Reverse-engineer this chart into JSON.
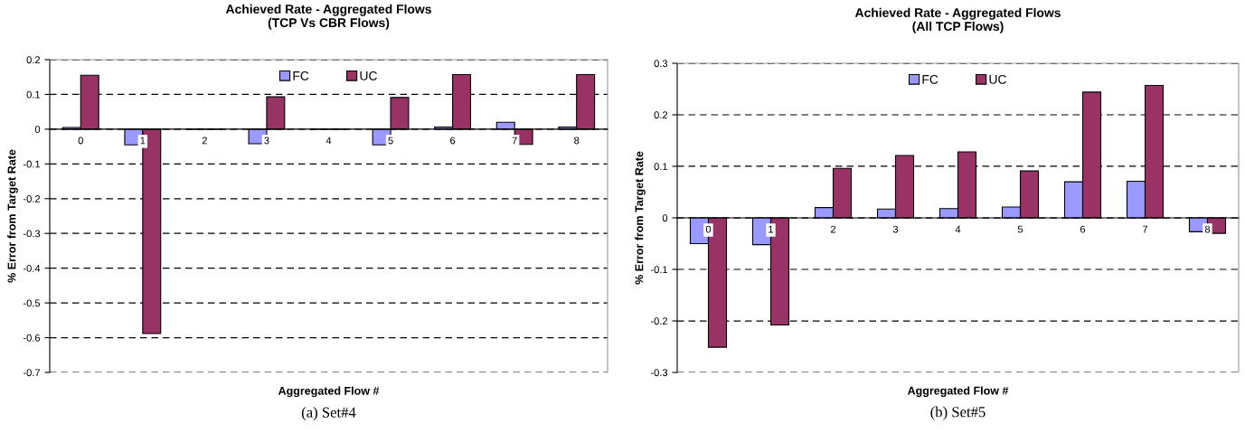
{
  "chart_data": [
    {
      "type": "bar",
      "title": "Achieved Rate - Aggregated Flows\n(TCP Vs CBR Flows)",
      "xlabel": "Aggregated Flow #",
      "ylabel": "% Error from Target Rate",
      "categories": [
        "0",
        "1",
        "2",
        "3",
        "4",
        "5",
        "6",
        "7",
        "8"
      ],
      "series": [
        {
          "name": "FC",
          "color": "#9999ff",
          "values": [
            0.005,
            -0.045,
            null,
            -0.042,
            null,
            -0.045,
            0.006,
            0.02,
            0.006
          ]
        },
        {
          "name": "UC",
          "color": "#993366",
          "values": [
            0.155,
            -0.588,
            null,
            0.093,
            null,
            0.091,
            0.157,
            -0.044,
            0.157
          ]
        }
      ],
      "ylim": [
        -0.7,
        0.2
      ],
      "yticks": [
        -0.7,
        -0.6,
        -0.5,
        -0.4,
        -0.3,
        -0.2,
        -0.1,
        0,
        0.1,
        0.2
      ],
      "grid": "y",
      "legend": "top",
      "annotations": [
        "(a) Set#4"
      ]
    },
    {
      "type": "bar",
      "title": "Achieved Rate - Aggregated Flows\n(All TCP Flows)",
      "xlabel": "Aggregated Flow #",
      "ylabel": "% Error from Target Rate",
      "categories": [
        "0",
        "1",
        "2",
        "3",
        "4",
        "5",
        "6",
        "7",
        "8"
      ],
      "series": [
        {
          "name": "FC",
          "color": "#9999ff",
          "values": [
            -0.05,
            -0.052,
            0.02,
            0.017,
            0.018,
            0.021,
            0.07,
            0.071,
            -0.027
          ]
        },
        {
          "name": "UC",
          "color": "#993366",
          "values": [
            -0.251,
            -0.208,
            0.096,
            0.121,
            0.128,
            0.091,
            0.244,
            0.257,
            -0.03
          ]
        }
      ],
      "ylim": [
        -0.3,
        0.3
      ],
      "yticks": [
        -0.3,
        -0.2,
        -0.1,
        0,
        0.1,
        0.2,
        0.3
      ],
      "grid": "y",
      "legend": "top",
      "annotations": [
        "(b) Set#5"
      ]
    }
  ]
}
